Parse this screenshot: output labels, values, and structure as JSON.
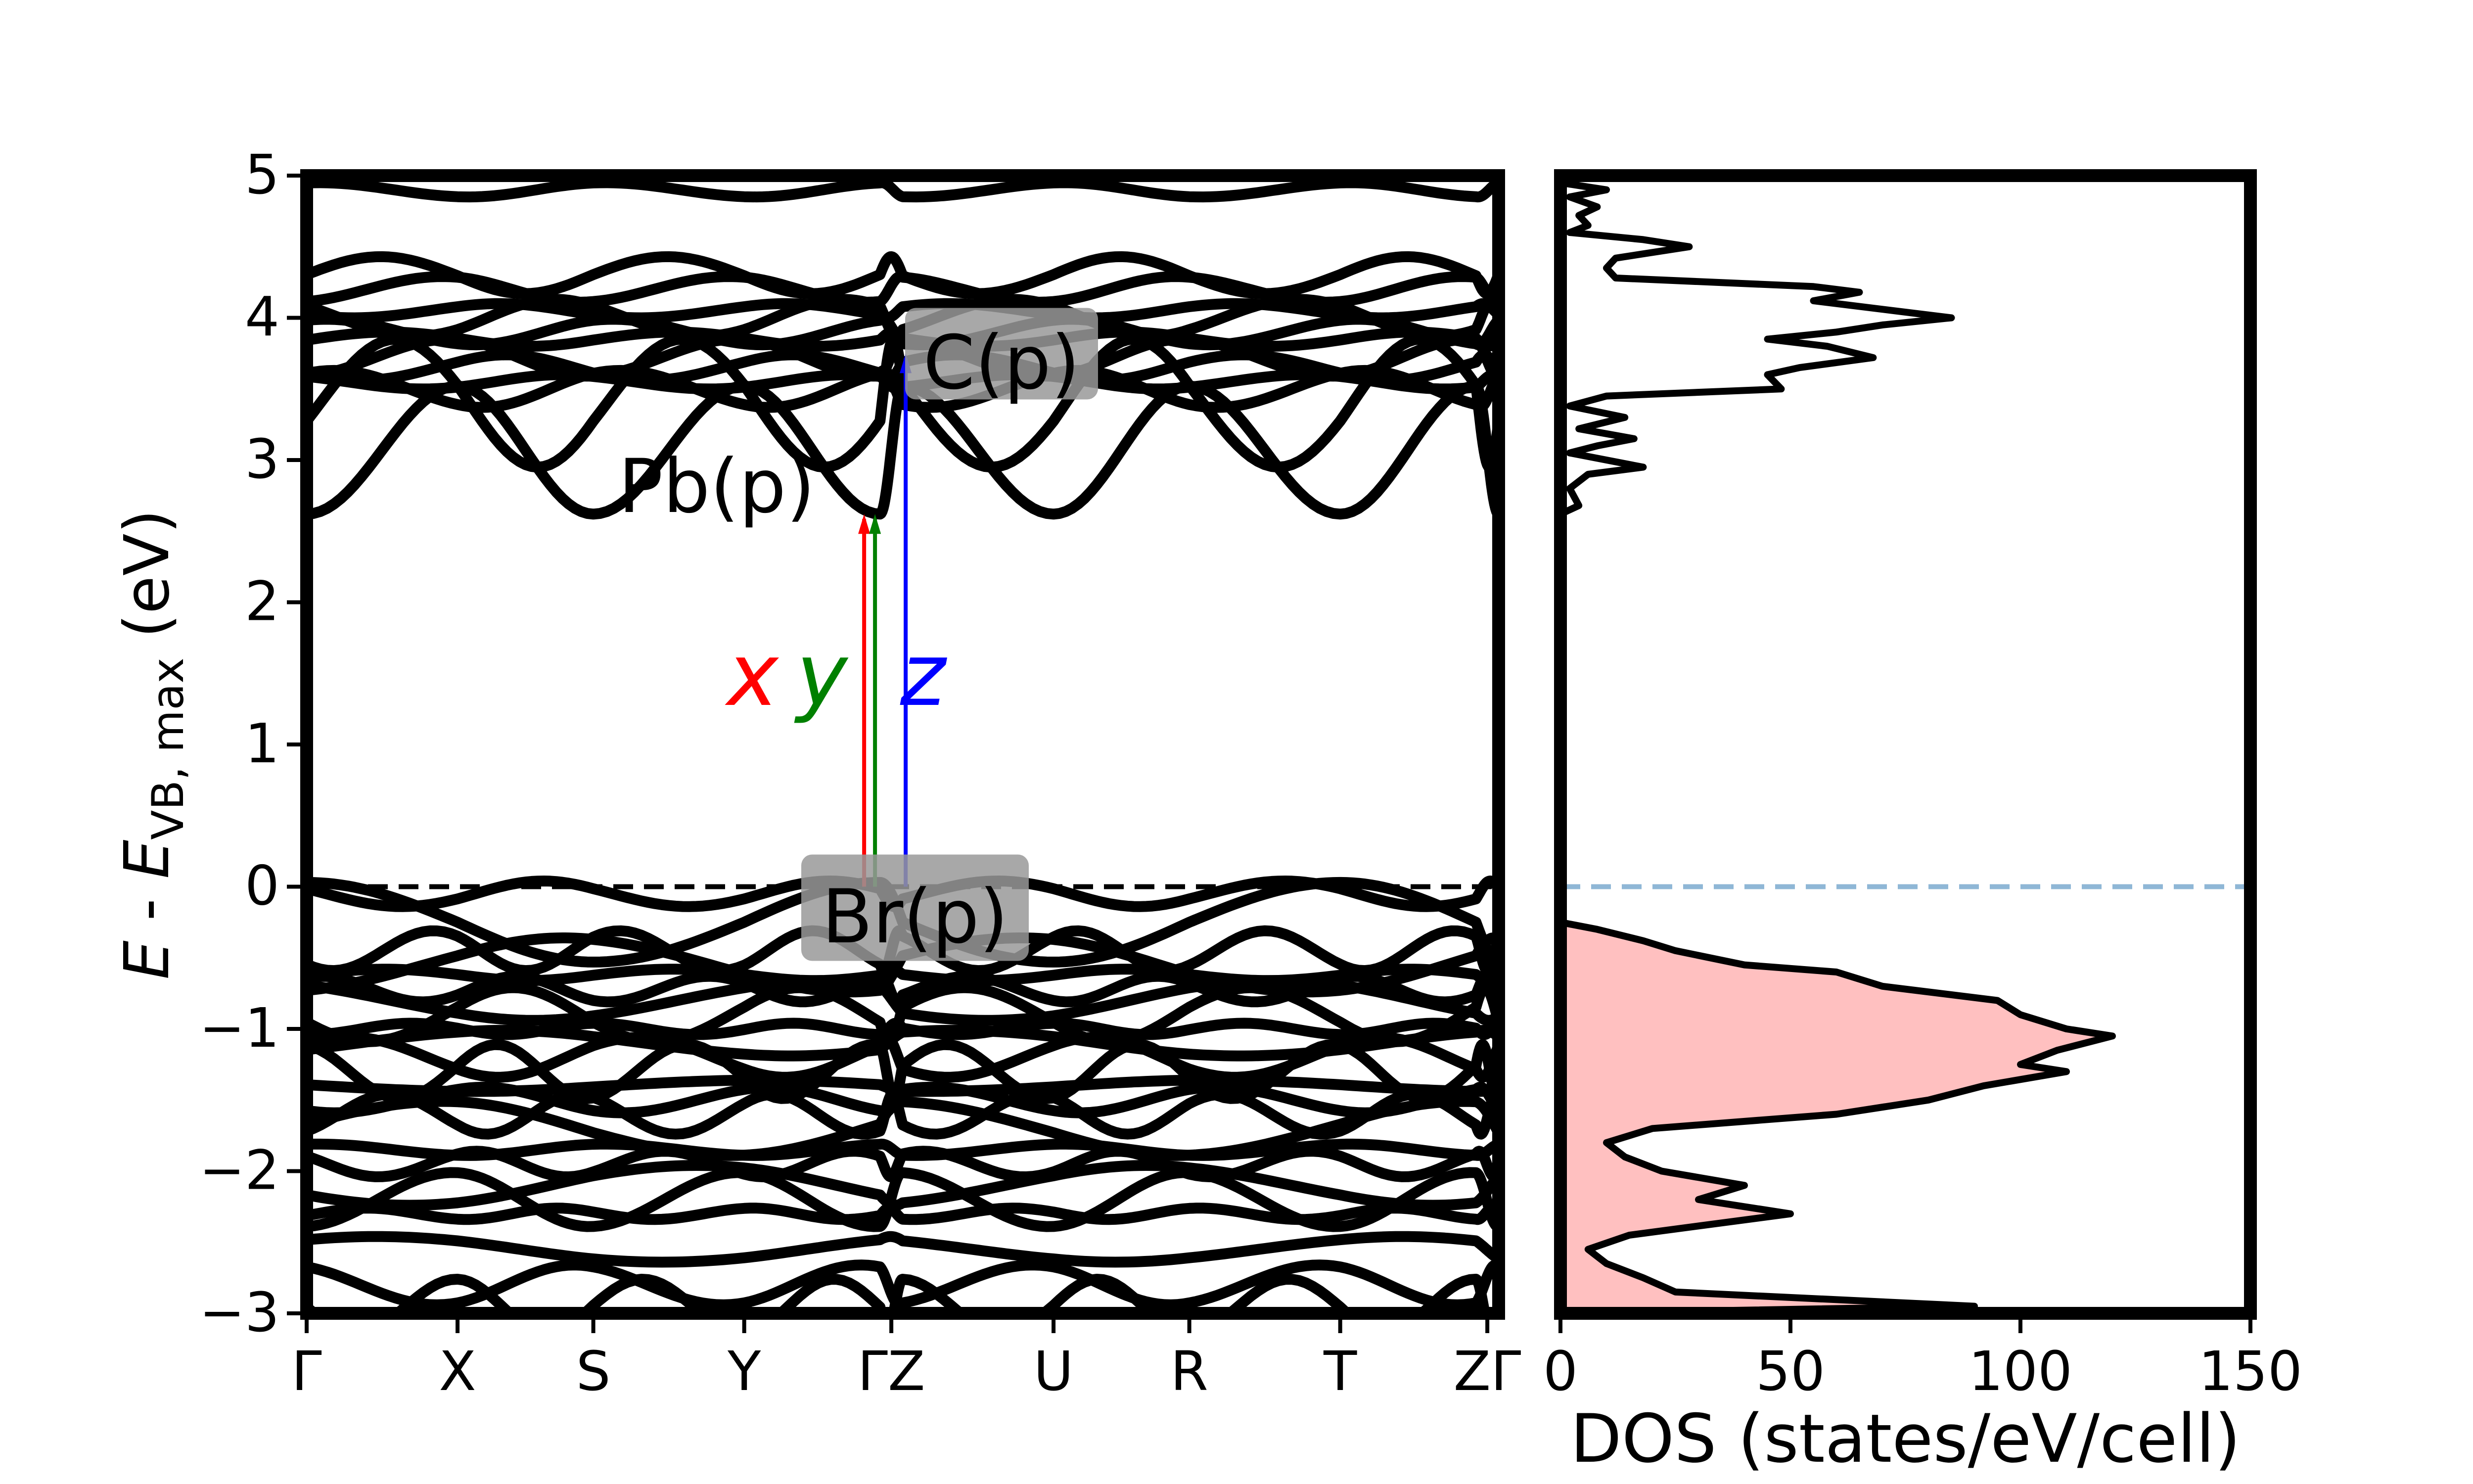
{
  "chart_data": [
    {
      "type": "line",
      "subtype": "band-structure",
      "ylabel": {
        "italic_e": "E",
        "mid": " - ",
        "italic_e2": "E",
        "sub": "VB, max",
        "unit": " (eV)"
      },
      "ylim": [
        -3,
        5
      ],
      "yticks": [
        5,
        4,
        3,
        2,
        1,
        0,
        -1,
        -2,
        -3
      ],
      "ytick_labels": [
        "5",
        "4",
        "3",
        "2",
        "1",
        "0",
        "−1",
        "−2",
        "−3"
      ],
      "kpath": [
        "Γ",
        "X",
        "S",
        "Y",
        "Γ",
        "Z",
        "U",
        "R",
        "T",
        "Z",
        "Γ"
      ],
      "kpath_labels": [
        "Γ",
        "X",
        "S",
        "Y",
        "ΓZ",
        "U",
        "R",
        "T",
        "ZΓ"
      ],
      "fermi_level": 0,
      "band_gap_eV": 2.62,
      "valence_band_levels": [
        0.0,
        -0.05,
        -0.45,
        -0.55,
        -0.62,
        -0.72,
        -0.8,
        -0.9,
        -1.0,
        -1.1,
        -1.2,
        -1.3,
        -1.4,
        -1.5,
        -1.6,
        -1.7,
        -1.85,
        -1.95,
        -2.1,
        -2.2,
        -2.3,
        -2.55,
        -2.8,
        -2.95
      ],
      "conduction_band_levels": [
        2.62,
        2.95,
        3.5,
        3.55,
        3.65,
        3.72,
        3.85,
        3.9,
        4.0,
        4.05,
        4.2,
        4.3,
        4.9
      ],
      "transitions": [
        {
          "name": "x",
          "color": "#ff0000",
          "from": 0,
          "to": 2.62
        },
        {
          "name": "y",
          "color": "#008000",
          "from": 0,
          "to": 2.62
        },
        {
          "name": "z",
          "color": "#0000ff",
          "from": 0,
          "to": 3.75
        }
      ],
      "annotations": [
        {
          "text": "Br(p)",
          "at_k": 4.3,
          "at_e": -0.55
        },
        {
          "text": "Pb(p)",
          "at_k": 3.0,
          "at_e": 2.45
        },
        {
          "text": "C(p)",
          "at_k": 5.8,
          "at_e": 3.35
        }
      ],
      "arrow_labels": [
        "x",
        "y",
        "z"
      ]
    },
    {
      "type": "area",
      "subtype": "density-of-states",
      "xlabel": "DOS (states/eV/cell)",
      "xlim": [
        0,
        150
      ],
      "xticks": [
        0,
        50,
        100,
        150
      ],
      "xtick_labels": [
        "0",
        "50",
        "100",
        "150"
      ],
      "ylim": [
        -3,
        5
      ],
      "fill_color": "#ffc0c0",
      "fermi_line_color": "#8fb7d6",
      "dos_curve": [
        [
          0,
          4.95
        ],
        [
          10,
          4.9
        ],
        [
          2,
          4.85
        ],
        [
          8,
          4.78
        ],
        [
          4,
          4.72
        ],
        [
          6,
          4.65
        ],
        [
          2,
          4.6
        ],
        [
          18,
          4.55
        ],
        [
          28,
          4.5
        ],
        [
          12,
          4.42
        ],
        [
          10,
          4.35
        ],
        [
          12,
          4.28
        ],
        [
          55,
          4.22
        ],
        [
          65,
          4.18
        ],
        [
          55,
          4.12
        ],
        [
          85,
          4.0
        ],
        [
          70,
          3.95
        ],
        [
          60,
          3.9
        ],
        [
          45,
          3.85
        ],
        [
          58,
          3.8
        ],
        [
          68,
          3.72
        ],
        [
          52,
          3.65
        ],
        [
          45,
          3.6
        ],
        [
          48,
          3.5
        ],
        [
          10,
          3.45
        ],
        [
          2,
          3.38
        ],
        [
          14,
          3.3
        ],
        [
          4,
          3.22
        ],
        [
          16,
          3.15
        ],
        [
          8,
          3.1
        ],
        [
          2,
          3.05
        ],
        [
          18,
          2.95
        ],
        [
          6,
          2.9
        ],
        [
          2,
          2.8
        ],
        [
          4,
          2.68
        ],
        [
          0,
          2.62
        ],
        [
          0,
          0.02
        ],
        [
          0,
          -0.25
        ],
        [
          8,
          -0.3
        ],
        [
          18,
          -0.38
        ],
        [
          25,
          -0.45
        ],
        [
          40,
          -0.55
        ],
        [
          60,
          -0.6
        ],
        [
          70,
          -0.7
        ],
        [
          95,
          -0.8
        ],
        [
          100,
          -0.9
        ],
        [
          110,
          -1.0
        ],
        [
          120,
          -1.05
        ],
        [
          108,
          -1.15
        ],
        [
          100,
          -1.25
        ],
        [
          110,
          -1.3
        ],
        [
          92,
          -1.4
        ],
        [
          80,
          -1.5
        ],
        [
          60,
          -1.6
        ],
        [
          20,
          -1.7
        ],
        [
          10,
          -1.8
        ],
        [
          14,
          -1.9
        ],
        [
          22,
          -2.0
        ],
        [
          40,
          -2.1
        ],
        [
          30,
          -2.2
        ],
        [
          50,
          -2.3
        ],
        [
          15,
          -2.45
        ],
        [
          6,
          -2.55
        ],
        [
          10,
          -2.65
        ],
        [
          18,
          -2.75
        ],
        [
          25,
          -2.85
        ],
        [
          90,
          -2.95
        ],
        [
          0,
          -3.0
        ]
      ]
    }
  ]
}
